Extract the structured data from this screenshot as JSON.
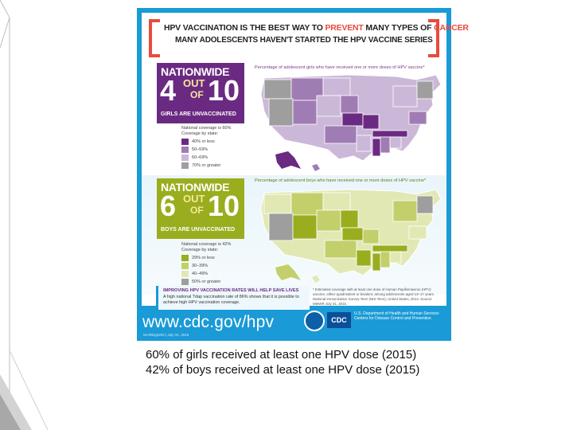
{
  "poster": {
    "headline_part1": "HPV VACCINATION IS THE BEST WAY TO ",
    "headline_red1": "PREVENT",
    "headline_part2": " MANY TYPES OF ",
    "headline_red2": "CANCER",
    "subheadline": "MANY ADOLESCENTS HAVEN'T STARTED THE HPV VACCINE SERIES",
    "girls": {
      "nationwide": "NATIONWIDE",
      "count": "4",
      "out": "OUT",
      "of": "OF",
      "total": "10",
      "sub": "GIRLS ARE UNVACCINATED",
      "map_title": "Percentage of adolescent girls who have received one or more doses of HPV vaccine*",
      "legend_title1": "National coverage is 60%",
      "legend_title2": "Coverage by state:",
      "legend": [
        {
          "label": "40% or less",
          "color": "#6b2a82"
        },
        {
          "label": "50–59%",
          "color": "#a07cb4"
        },
        {
          "label": "60–69%",
          "color": "#cbb8d8"
        },
        {
          "label": "70% or greater",
          "color": "#9e9e9e"
        }
      ]
    },
    "boys": {
      "nationwide": "NATIONWIDE",
      "count": "6",
      "out": "OUT",
      "of": "OF",
      "total": "10",
      "sub": "BOYS ARE UNVACCINATED",
      "map_title": "Percentage of adolescent boys who have received one or more doses of HPV vaccine*",
      "legend_title1": "National coverage is 42%",
      "legend_title2": "Coverage by state:",
      "legend": [
        {
          "label": "29% or less",
          "color": "#9aad1e"
        },
        {
          "label": "30–39%",
          "color": "#c3cf6a"
        },
        {
          "label": "40–49%",
          "color": "#e2e8b4"
        },
        {
          "label": "50% or greater",
          "color": "#9e9e9e"
        }
      ]
    },
    "callout_title": "IMPROVING HPV VACCINATION RATES WILL HELP SAVE LIVES",
    "callout_body": "A high national Tdap vaccination rate of 86% shows that it is possible to achieve high HPV vaccination coverage.",
    "footnote": "* Estimated coverage with at least one dose of Human Papillomavirus (HPV) vaccine, either quadrivalent or bivalent, among adolescents aged 13–17 years. National Immunization Survey-Teen (NIS-Teen), United States, 2014. Source: MMWR July 31, 2015",
    "url": "www.cdc.gov/hpv",
    "code": "NCIRDg2204 | July 31, 2015",
    "cdc": "CDC",
    "agency": "U.S. Department of Health and Human Services Centers for Disease Control and Prevention"
  },
  "caption": {
    "line1": "60% of girls received at least one HPV dose (2015)",
    "line2": "42% of boys received at least one HPV dose (2015)"
  },
  "colors": {
    "accent_blue": "#1a9ad6",
    "red": "#e74c3c",
    "purple": "#6b2a82",
    "olive": "#9aad1e"
  }
}
